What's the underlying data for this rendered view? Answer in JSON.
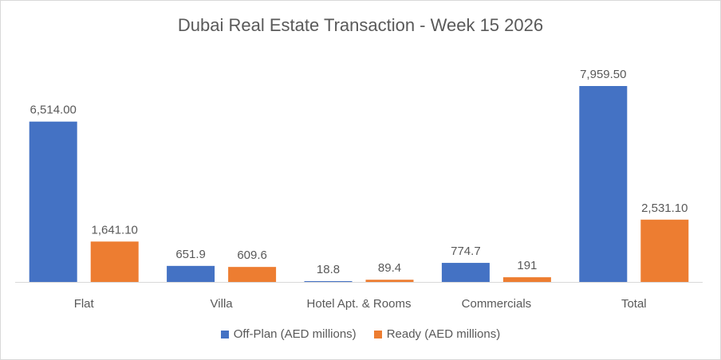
{
  "title": "Dubai Real Estate Transaction - Week 15 2026",
  "colors": {
    "off_plan": "#4472c4",
    "ready": "#ed7d31",
    "text": "#595959",
    "axis": "#d9d9d9"
  },
  "chart_data": {
    "type": "bar",
    "title": "Dubai Real Estate Transaction - Week 15 2026",
    "categories": [
      "Flat",
      "Villa",
      "Hotel Apt. & Rooms",
      "Commercials",
      "Total"
    ],
    "series": [
      {
        "name": "Off-Plan (AED millions)",
        "values": [
          6514.0,
          651.9,
          18.8,
          774.7,
          7959.5
        ],
        "labels": [
          "6,514.00",
          "651.9",
          "18.8",
          "774.7",
          "7,959.50"
        ]
      },
      {
        "name": "Ready (AED millions)",
        "values": [
          1641.1,
          609.6,
          89.4,
          191,
          2531.1
        ],
        "labels": [
          "1,641.10",
          "609.6",
          "89.4",
          "191",
          "2,531.10"
        ]
      }
    ],
    "ylim": [
      0,
      7959.5
    ],
    "grid": false,
    "legend": "bottom"
  }
}
